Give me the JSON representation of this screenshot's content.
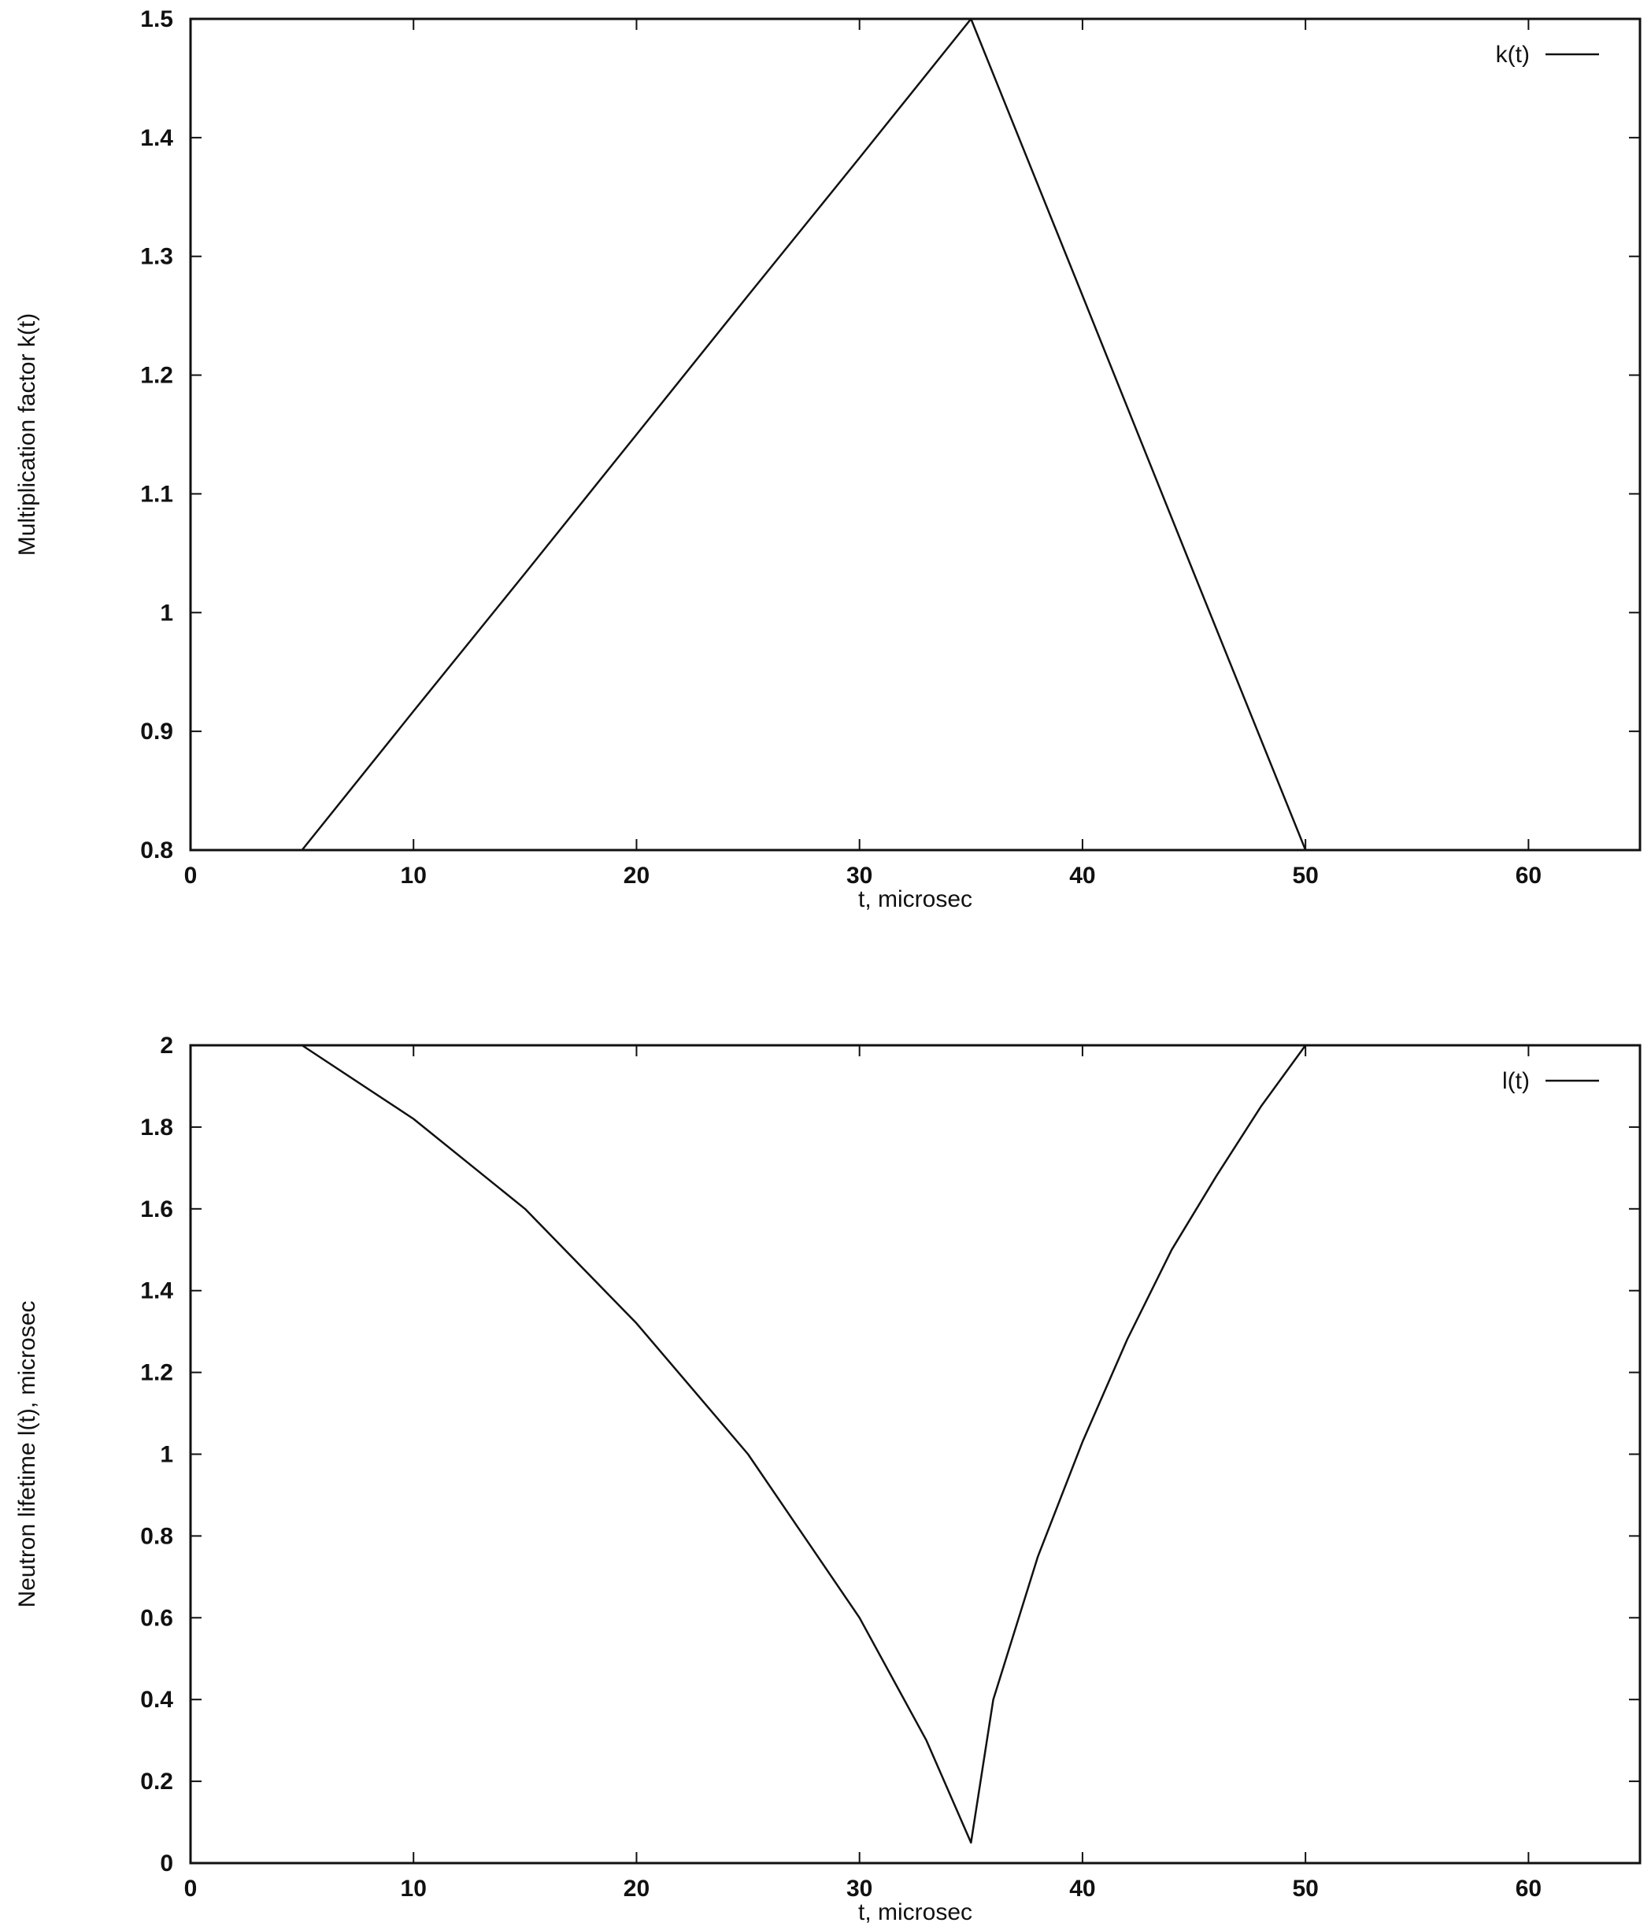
{
  "colors": {
    "ink": "#111111",
    "background": "#ffffff"
  },
  "chart_data": [
    {
      "type": "line",
      "title": "",
      "xlabel": "t, microsec",
      "ylabel": "Multiplication factor k(t)",
      "xlim": [
        0,
        65
      ],
      "ylim": [
        0.8,
        1.5
      ],
      "xticks": [
        0,
        10,
        20,
        30,
        40,
        50,
        60
      ],
      "yticks": [
        0.8,
        0.9,
        1,
        1.1,
        1.2,
        1.3,
        1.4,
        1.5
      ],
      "xtick_labels": [
        "0",
        "10",
        "20",
        "30",
        "40",
        "50",
        "60"
      ],
      "ytick_labels": [
        "0.8",
        "0.9",
        "1",
        "1.1",
        "1.2",
        "1.3",
        "1.4",
        "1.5"
      ],
      "grid": false,
      "legend_position": "top-right",
      "series": [
        {
          "name": "k(t)",
          "x": [
            0,
            5,
            10,
            15,
            20,
            25,
            30,
            35,
            40,
            45,
            50,
            55,
            60,
            65
          ],
          "y": [
            0.8,
            0.8,
            0.917,
            1.033,
            1.15,
            1.267,
            1.383,
            1.5,
            1.267,
            1.033,
            0.8,
            0.8,
            0.8,
            0.8
          ]
        }
      ]
    },
    {
      "type": "line",
      "title": "",
      "xlabel": "t, microsec",
      "ylabel": "Neutron lifetime l(t), microsec",
      "xlim": [
        0,
        65
      ],
      "ylim": [
        0,
        2
      ],
      "xticks": [
        0,
        10,
        20,
        30,
        40,
        50,
        60
      ],
      "yticks": [
        0,
        0.2,
        0.4,
        0.6,
        0.8,
        1,
        1.2,
        1.4,
        1.6,
        1.8,
        2
      ],
      "xtick_labels": [
        "0",
        "10",
        "20",
        "30",
        "40",
        "50",
        "60"
      ],
      "ytick_labels": [
        "0",
        "0.2",
        "0.4",
        "0.6",
        "0.8",
        "1",
        "1.2",
        "1.4",
        "1.6",
        "1.8",
        "2"
      ],
      "grid": false,
      "legend_position": "top-right",
      "series": [
        {
          "name": "l(t)",
          "x": [
            0,
            5,
            10,
            15,
            20,
            25,
            30,
            33,
            35,
            36,
            38,
            40,
            42,
            44,
            46,
            48,
            50,
            55,
            60,
            65
          ],
          "y": [
            2.0,
            2.0,
            1.82,
            1.6,
            1.32,
            1.0,
            0.6,
            0.3,
            0.05,
            0.4,
            0.75,
            1.03,
            1.28,
            1.5,
            1.68,
            1.85,
            2.0,
            2.0,
            2.0,
            2.0
          ]
        }
      ]
    }
  ]
}
